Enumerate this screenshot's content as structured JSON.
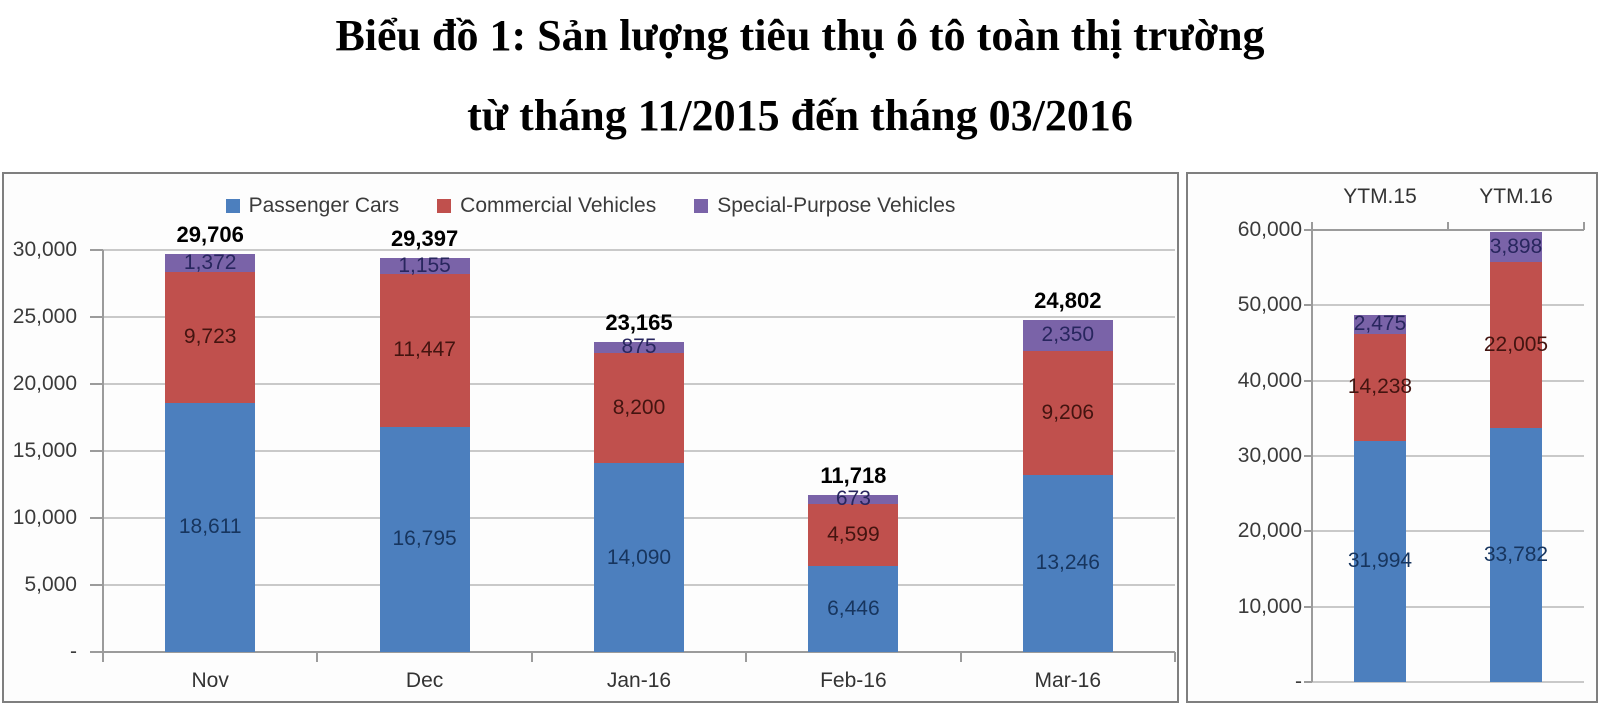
{
  "title": {
    "line1": "Biểu đồ 1: Sản lượng tiêu thụ ô tô toàn thị trường",
    "line2": "từ tháng 11/2015 đến tháng 03/2016"
  },
  "chart_data": [
    {
      "type": "bar",
      "stacked": true,
      "title": "Monthly total market auto sales volume",
      "xlabel": "",
      "ylabel": "",
      "grid": true,
      "legend": true,
      "legend_position": "top",
      "categories": [
        "Nov",
        "Dec",
        "Jan-16",
        "Feb-16",
        "Mar-16"
      ],
      "category_label_position": "bottom",
      "series": [
        {
          "name": "Passenger Cars",
          "color": "#4C7FBE",
          "label_color": "#17355E",
          "values": [
            18611,
            16795,
            14090,
            6446,
            13246
          ]
        },
        {
          "name": "Commercial Vehicles",
          "color": "#C0504D",
          "label_color": "#431410",
          "values": [
            9723,
            11447,
            8200,
            4599,
            9206
          ]
        },
        {
          "name": "Special-Purpose Vehicles",
          "color": "#7A63A8",
          "label_color": "#28265E",
          "values": [
            1372,
            1155,
            875,
            673,
            2350
          ]
        }
      ],
      "totals": [
        29706,
        29397,
        23165,
        11718,
        24802
      ],
      "ylim": [
        0,
        30000
      ],
      "ytick_step": 5000,
      "yticks": [
        "-",
        "5,000",
        "10,000",
        "15,000",
        "20,000",
        "25,000",
        "30,000"
      ]
    },
    {
      "type": "bar",
      "stacked": true,
      "title": "Year-to-month comparison",
      "xlabel": "",
      "ylabel": "",
      "grid": true,
      "legend": false,
      "categories": [
        "YTM.15",
        "YTM.16"
      ],
      "category_label_position": "top",
      "series": [
        {
          "name": "Passenger Cars",
          "color": "#4C7FBE",
          "label_color": "#17355E",
          "values": [
            31994,
            33782
          ]
        },
        {
          "name": "Commercial Vehicles",
          "color": "#C0504D",
          "label_color": "#431410",
          "values": [
            14238,
            22005
          ]
        },
        {
          "name": "Special-Purpose Vehicles",
          "color": "#7A63A8",
          "label_color": "#28265E",
          "values": [
            2475,
            3898
          ]
        }
      ],
      "ylim": [
        0,
        60000
      ],
      "ytick_step": 10000,
      "yticks": [
        "-",
        "10,000",
        "20,000",
        "30,000",
        "40,000",
        "50,000",
        "60,000"
      ]
    }
  ]
}
